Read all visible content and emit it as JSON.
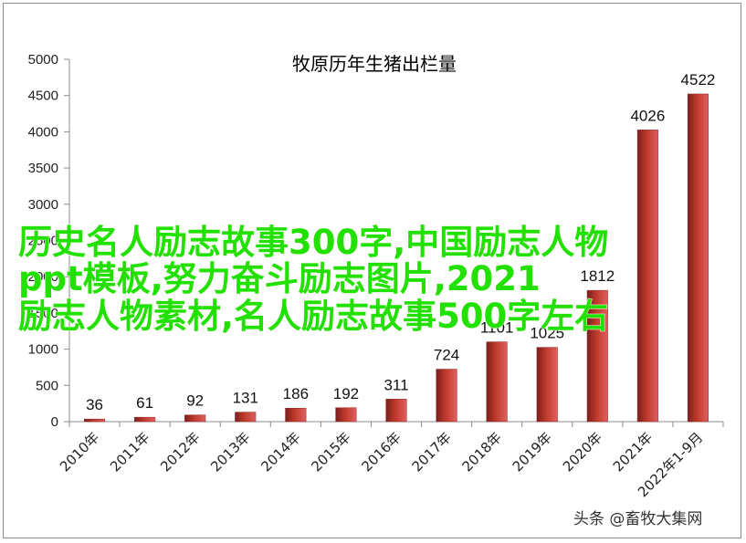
{
  "chart_data": {
    "type": "bar",
    "title": "牧原历年生猪出栏量",
    "xlabel": "",
    "ylabel": "",
    "ylim": [
      0,
      5000
    ],
    "yticks": [
      0,
      500,
      1000,
      1500,
      2000,
      2500,
      3000,
      3500,
      4000,
      4500,
      5000
    ],
    "grid": false,
    "legend": "none",
    "bar_color": "#c0392b",
    "categories": [
      "2010年",
      "2011年",
      "2012年",
      "2013年",
      "2014年",
      "2015年",
      "2016年",
      "2017年",
      "2018年",
      "2019年",
      "2020年",
      "2021年",
      "2022年1-9月"
    ],
    "values": [
      36,
      61,
      92,
      131,
      186,
      192,
      311,
      724,
      1101,
      1025,
      1812,
      4026,
      4522
    ],
    "data_labels": [
      "36",
      "61",
      "92",
      "131",
      "186",
      "192",
      "311",
      "724",
      "1101",
      "1025",
      "1812",
      "4026",
      "4522"
    ]
  },
  "overlay_text": {
    "line1": "历史名人励志故事300字,中国励志人物",
    "line2": "ppt模板,努力奋斗励志图片,2021",
    "line3": "励志人物素材,名人励志故事500字左右",
    "color": "#22e000"
  },
  "watermark": {
    "text": "头条 @畜牧大集网"
  }
}
